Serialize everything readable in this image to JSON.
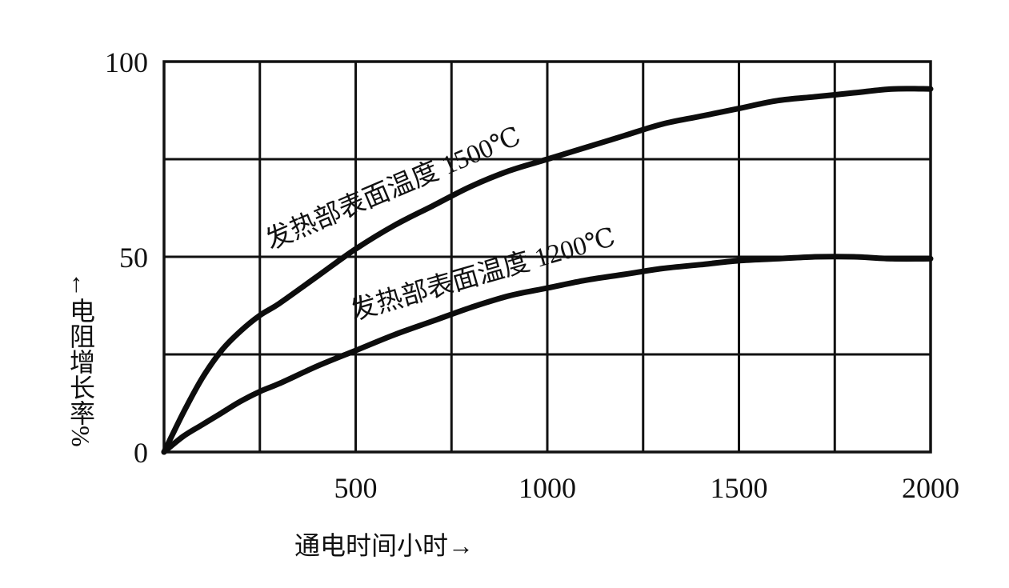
{
  "chart_data": {
    "type": "line",
    "xlabel": "通电时间小时→",
    "ylabel": "←电阻增长率%",
    "xlim": [
      0,
      2000
    ],
    "ylim": [
      0,
      100
    ],
    "x_ticks": [
      500,
      1000,
      1500,
      2000
    ],
    "y_ticks": [
      0,
      50,
      100
    ],
    "x_gridlines": [
      250,
      500,
      750,
      1000,
      1250,
      1500,
      1750,
      2000
    ],
    "y_gridlines": [
      25,
      50,
      75,
      100
    ],
    "grid": true,
    "legend": "none",
    "series": [
      {
        "name": "发热部表面温度 1500℃",
        "x": [
          0,
          50,
          100,
          150,
          200,
          250,
          300,
          400,
          500,
          600,
          700,
          800,
          900,
          1000,
          1100,
          1200,
          1300,
          1400,
          1500,
          1600,
          1700,
          1800,
          1900,
          2000
        ],
        "y": [
          0,
          10,
          19,
          26,
          31,
          35,
          38,
          45,
          52,
          58,
          63,
          68,
          72,
          75,
          78,
          81,
          84,
          86,
          88,
          90,
          91,
          92,
          93,
          93
        ]
      },
      {
        "name": "发热部表面温度 1200℃",
        "x": [
          0,
          50,
          100,
          150,
          200,
          250,
          300,
          400,
          500,
          600,
          700,
          800,
          900,
          1000,
          1100,
          1200,
          1300,
          1400,
          1500,
          1600,
          1700,
          1800,
          1900,
          2000
        ],
        "y": [
          0,
          4,
          7,
          10,
          13,
          15.5,
          17.5,
          22,
          26,
          30,
          33.5,
          37,
          40,
          42,
          44,
          45.5,
          47,
          48,
          49,
          49.5,
          50,
          50,
          49.5,
          49.5
        ]
      }
    ]
  }
}
